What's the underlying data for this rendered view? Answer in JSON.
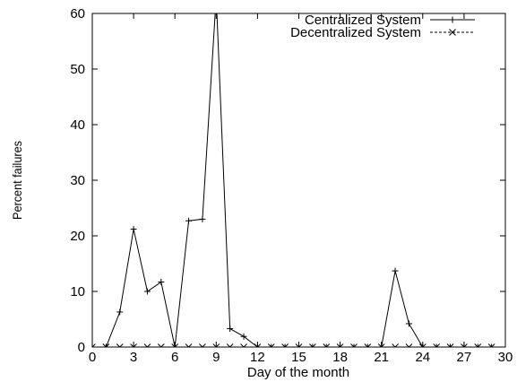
{
  "chart_data": {
    "type": "line",
    "title": "",
    "xlabel": "Day of the month",
    "ylabel": "Percent failures",
    "xlim": [
      0,
      30
    ],
    "ylim": [
      0,
      60
    ],
    "x_ticks": [
      0,
      3,
      6,
      9,
      12,
      15,
      18,
      21,
      24,
      27,
      30
    ],
    "y_ticks": [
      0,
      10,
      20,
      30,
      40,
      50,
      60
    ],
    "grid": false,
    "legend_position": "top-right",
    "series": [
      {
        "name": "Centralized System",
        "marker": "plus",
        "line_style": "solid",
        "color": "#000000",
        "x": [
          0,
          1,
          2,
          3,
          4,
          5,
          6,
          7,
          8,
          9,
          10,
          11,
          12,
          13,
          14,
          15,
          16,
          17,
          18,
          19,
          20,
          21,
          22,
          23,
          24,
          25,
          26,
          27,
          28,
          29
        ],
        "y": [
          0,
          0,
          6.3,
          21.2,
          10,
          11.7,
          0,
          22.7,
          23,
          63,
          3.3,
          1.9,
          0,
          0,
          0,
          0,
          0,
          0,
          0,
          0,
          0,
          0,
          13.7,
          4.2,
          0,
          0,
          0,
          0,
          0,
          0
        ]
      },
      {
        "name": "Decentralized System",
        "marker": "x",
        "line_style": "dashed",
        "color": "#000000",
        "x": [
          0,
          1,
          2,
          3,
          4,
          5,
          6,
          7,
          8,
          9,
          10,
          11,
          12,
          13,
          14,
          15,
          16,
          17,
          18,
          19,
          20,
          21,
          22,
          23,
          24,
          25,
          26,
          27,
          28,
          29
        ],
        "y": [
          0,
          0,
          0,
          0,
          0,
          0,
          0,
          0,
          0,
          0,
          0,
          0,
          0,
          0,
          0,
          0,
          0,
          0,
          0,
          0,
          0,
          0,
          0,
          0,
          0,
          0,
          0,
          0,
          0,
          0
        ]
      }
    ]
  }
}
